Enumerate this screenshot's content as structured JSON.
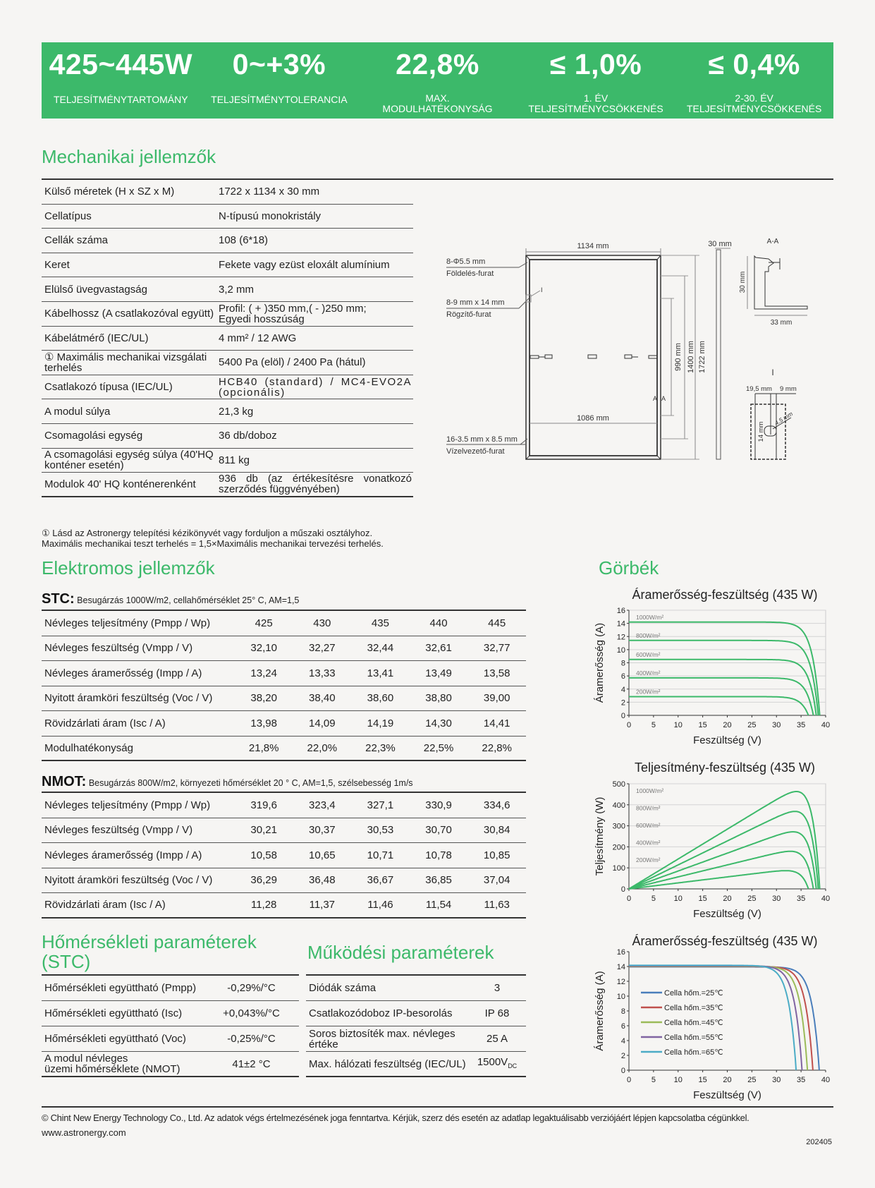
{
  "banner": [
    {
      "value": "425~445W",
      "label": "TELJESÍTMÉNYTARTOMÁNY"
    },
    {
      "value": "0~+3%",
      "label": "TELJESÍTMÉNYTOLERANCIA"
    },
    {
      "value": "22,8%",
      "label": "MAX.\nMODULHATÉKONYSÁG"
    },
    {
      "value": "≤ 1,0%",
      "label": "1. ÉV\nTELJESÍTMÉNYCSÖKKENÉS"
    },
    {
      "value": "≤ 0,4%",
      "label": "2-30. ÉV\nTELJESÍTMÉNYCSÖKKENÉS"
    }
  ],
  "colors": {
    "brand": "#3cb96a"
  },
  "mechanical": {
    "title": "Mechanikai jellemzők",
    "rows": [
      [
        "Külső méretek (H x SZ x M)",
        "1722 x 1134 x 30 mm"
      ],
      [
        "Cellatípus",
        "N-típusú monokristály"
      ],
      [
        "Cellák száma",
        "108 (6*18)"
      ],
      [
        "Keret",
        "Fekete vagy ezüst eloxált alumínium"
      ],
      [
        "Elülső üvegvastagság",
        "3,2 mm"
      ],
      [
        "Kábelhossz (A csatlakozóval együtt)",
        "Profil: ( + )350 mm,( - )250 mm;\nEgyedi hosszúság"
      ],
      [
        "Kábelátmérő (IEC/UL)",
        "4 mm² / 12 AWG"
      ],
      [
        "① Maximális mechanikai vizsgálati terhelés",
        "5400 Pa (elöl) / 2400 Pa (hátul)"
      ],
      [
        "Csatlakozó típusa (IEC/UL)",
        "HCB40 (standard) / MC4-EVO2A (opcionális)"
      ],
      [
        "A modul súlya",
        "21,3 kg"
      ],
      [
        "Csomagolási egység",
        "36 db/doboz"
      ],
      [
        "A csomagolási egység súlya (40'HQ\nkonténer esetén)",
        "811 kg"
      ],
      [
        "Modulok 40' HQ konténerenként",
        "936 db (az értékesítésre vonatkozó szerződés függvényében)"
      ]
    ],
    "footnote1": "① Lásd az Astronergy telepítési kézikönyvét vagy forduljon a műszaki osztályhoz.",
    "footnote2": "Maximális mechanikai teszt terhelés = 1,5×Maximális mechanikai tervezési terhelés."
  },
  "drawing": {
    "width": "1134 mm",
    "inner_width": "1086 mm",
    "thickness": "30 mm",
    "h990": "990 mm",
    "h1400": "1400 mm",
    "h1722": "1722 mm",
    "ground_hole": "8-Φ5.5 mm",
    "ground_label": "Földelés-furat",
    "mount_hole": "8-9 mm x 14 mm",
    "mount_label": "Rögzítő-furat",
    "drain_hole": "16-3.5 mm x 8.5 mm",
    "drain_label": "Vízelvezető-furat",
    "section": "A-A",
    "sec_h": "30 mm",
    "sec_w": "33 mm",
    "detail": "I",
    "det_a": "19,5 mm",
    "det_b": "9 mm",
    "det_c": "14 mm",
    "det_r": "4.5 mm",
    "mark_a": "A"
  },
  "electrical": {
    "title": "Elektromos jellemzők",
    "stc_label": "STC:",
    "stc_cond": "Besugárzás 1000W/m2, cellahőmérséklet 25° C, AM=1,5",
    "stc": [
      [
        "Névleges teljesítmény (Pmpp / Wp)",
        "425",
        "430",
        "435",
        "440",
        "445"
      ],
      [
        "Névleges feszültség (Vmpp / V)",
        "32,10",
        "32,27",
        "32,44",
        "32,61",
        "32,77"
      ],
      [
        "Névleges áramerősség (Impp / A)",
        "13,24",
        "13,33",
        "13,41",
        "13,49",
        "13,58"
      ],
      [
        "Nyitott áramköri feszültség (Voc / V)",
        "38,20",
        "38,40",
        "38,60",
        "38,80",
        "39,00"
      ],
      [
        "Rövidzárlati áram (Isc / A)",
        "13,98",
        "14,09",
        "14,19",
        "14,30",
        "14,41"
      ],
      [
        "Modulhatékonyság",
        "21,8%",
        "22,0%",
        "22,3%",
        "22,5%",
        "22,8%"
      ]
    ],
    "nmot_label": "NMOT:",
    "nmot_cond": "Besugárzás 800W/m2, környezeti hőmérséklet 20 ° C, AM=1,5, szélsebesség 1m/s",
    "nmot": [
      [
        "Névleges teljesítmény (Pmpp / Wp)",
        "319,6",
        "323,4",
        "327,1",
        "330,9",
        "334,6"
      ],
      [
        "Névleges feszültség (Vmpp / V)",
        "30,21",
        "30,37",
        "30,53",
        "30,70",
        "30,84"
      ],
      [
        "Névleges áramerősség (Impp / A)",
        "10,58",
        "10,65",
        "10,71",
        "10,78",
        "10,85"
      ],
      [
        "Nyitott áramköri feszültség (Voc / V)",
        "36,29",
        "36,48",
        "36,67",
        "36,85",
        "37,04"
      ],
      [
        "Rövidzárlati áram (Isc / A)",
        "11,28",
        "11,37",
        "11,46",
        "11,54",
        "11,63"
      ]
    ]
  },
  "temperature": {
    "title1": "Hőmérsékleti paraméterek",
    "title2": "(STC)",
    "rows": [
      [
        "Hőmérsékleti együttható (Pmpp)",
        "-0,29%/°C"
      ],
      [
        "Hőmérsékleti együttható (Isc)",
        "+0,043%/°C"
      ],
      [
        "Hőmérsékleti együttható (Voc)",
        "-0,25%/°C"
      ],
      [
        "A modul névleges\nüzemi hőmérséklete (NMOT)",
        "41±2 °C"
      ]
    ]
  },
  "operating": {
    "title": "Működési paraméterek",
    "rows": [
      [
        "Diódák száma",
        "3",
        ""
      ],
      [
        "Csatlakozódoboz IP-besorolás",
        "IP 68",
        ""
      ],
      [
        "Soros biztosíték max. névleges értéke",
        "25 A",
        ""
      ],
      [
        "Max. hálózati feszültség (IEC/UL)",
        "1500V",
        "DC"
      ]
    ]
  },
  "curves_title": "Görbék",
  "chart_data": [
    {
      "type": "line",
      "title": "Áramerősség-feszültség (435 W)",
      "xlabel": "Feszültség (V)",
      "ylabel": "Áramerősség (A)",
      "xlim": [
        0,
        40
      ],
      "ylim": [
        0,
        16
      ],
      "xticks": [
        0,
        5,
        10,
        15,
        20,
        25,
        30,
        35,
        40
      ],
      "yticks": [
        0,
        2,
        4,
        6,
        8,
        10,
        12,
        14,
        16
      ],
      "grid": true,
      "legend": "inline-labels",
      "series": [
        {
          "name": "1000W/m²",
          "isc": 14.2,
          "voc": 38.8,
          "color": "#3cb96a"
        },
        {
          "name": "800W/m²",
          "isc": 11.4,
          "voc": 38.5,
          "color": "#3cb96a"
        },
        {
          "name": "600W/m²",
          "isc": 8.5,
          "voc": 38.1,
          "color": "#3cb96a"
        },
        {
          "name": "400W/m²",
          "isc": 5.7,
          "voc": 37.5,
          "color": "#3cb96a"
        },
        {
          "name": "200W/m²",
          "isc": 2.85,
          "voc": 36.5,
          "color": "#3cb96a"
        }
      ]
    },
    {
      "type": "line",
      "title": "Teljesítmény-feszültség (435 W)",
      "xlabel": "Feszültség (V)",
      "ylabel": "Teljesítmény (W)",
      "xlim": [
        0,
        40
      ],
      "ylim": [
        0,
        500
      ],
      "xticks": [
        0,
        5,
        10,
        15,
        20,
        25,
        30,
        35,
        40
      ],
      "yticks": [
        0,
        100,
        200,
        300,
        400,
        500
      ],
      "grid": true,
      "legend": "inline-labels",
      "power": true,
      "series": [
        {
          "name": "1000W/m²",
          "isc": 14.2,
          "voc": 38.8,
          "color": "#3cb96a"
        },
        {
          "name": "800W/m²",
          "isc": 11.4,
          "voc": 38.5,
          "color": "#3cb96a"
        },
        {
          "name": "600W/m²",
          "isc": 8.5,
          "voc": 38.1,
          "color": "#3cb96a"
        },
        {
          "name": "400W/m²",
          "isc": 5.7,
          "voc": 37.5,
          "color": "#3cb96a"
        },
        {
          "name": "200W/m²",
          "isc": 2.85,
          "voc": 36.5,
          "color": "#3cb96a"
        }
      ]
    },
    {
      "type": "line",
      "title": "Áramerősség-feszültség (435 W)",
      "xlabel": "Feszültség (V)",
      "ylabel": "Áramerősség (A)",
      "xlim": [
        0,
        40
      ],
      "ylim": [
        0,
        16
      ],
      "xticks": [
        0,
        5,
        10,
        15,
        20,
        25,
        30,
        35,
        40
      ],
      "yticks": [
        0,
        2,
        4,
        6,
        8,
        10,
        12,
        14,
        16
      ],
      "grid": false,
      "legend": "left",
      "series": [
        {
          "name": "Cella hőm.=25℃",
          "isc": 13.95,
          "voc": 38.7,
          "color": "#4a7ebb"
        },
        {
          "name": "Cella hőm.=35℃",
          "isc": 14.0,
          "voc": 37.4,
          "color": "#c0504d"
        },
        {
          "name": "Cella hőm.=45℃",
          "isc": 14.05,
          "voc": 36.3,
          "color": "#9bbb59"
        },
        {
          "name": "Cella hőm.=55℃",
          "isc": 14.1,
          "voc": 35.2,
          "color": "#8064a2"
        },
        {
          "name": "Cella hőm.=65℃",
          "isc": 14.15,
          "voc": 34.0,
          "color": "#4bacc6"
        }
      ]
    }
  ],
  "footer": {
    "copyright": "© Chint New Energy Technology Co., Ltd.  Az adatok végs  értelmezésének joga fenntartva. Kérjük, szerz dés esetén az adatlap legaktuálisabb verziójáért lépjen kapcsolatba cégünkkel.",
    "website": "www.astronergy.com",
    "code": "202405"
  }
}
